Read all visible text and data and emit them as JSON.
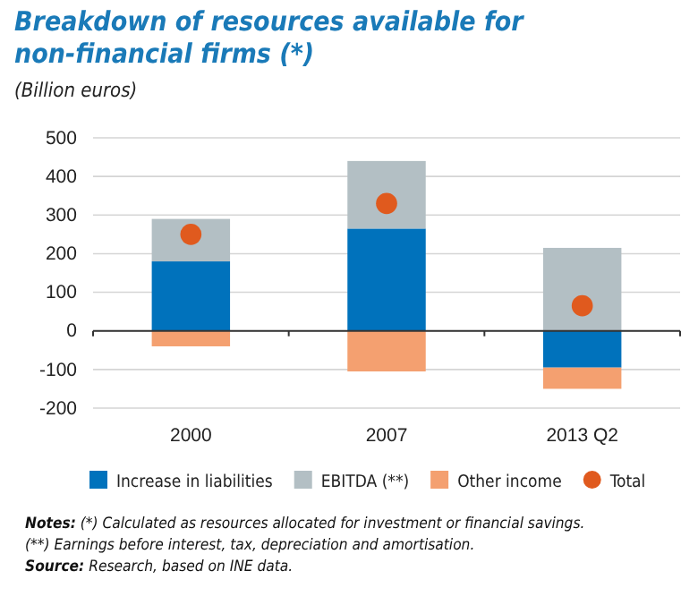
{
  "chart_data": {
    "type": "bar",
    "title": "Breakdown of resources available for non-financial firms (*)",
    "ylabel": "(Billion euros)",
    "categories": [
      "2000",
      "2007",
      "2013 Q2"
    ],
    "stacked": true,
    "series": [
      {
        "name": "Increase in liabilities",
        "color": "#0072bc",
        "values": [
          180,
          265,
          -95
        ]
      },
      {
        "name": "EBITDA (**)",
        "color": "#b3bfc4",
        "values": [
          110,
          175,
          215
        ]
      },
      {
        "name": "Other income",
        "color": "#f4a070",
        "values": [
          -40,
          -105,
          -55
        ]
      },
      {
        "name": "Total",
        "type": "scatter",
        "color": "#e05a1e",
        "values": [
          250,
          330,
          65
        ]
      }
    ],
    "ylim": [
      -200,
      500
    ],
    "yticks": [
      -200,
      -100,
      0,
      100,
      200,
      300,
      400,
      500
    ],
    "grid": "y",
    "legend": "bottom",
    "marker": "circle",
    "annotations": [
      "Notes: (*) Calculated as resources allocated for investment or financial savings.",
      "(**) Earnings before interest, tax, depreciation and amortisation.",
      "Source: Research, based on INE data."
    ]
  }
}
